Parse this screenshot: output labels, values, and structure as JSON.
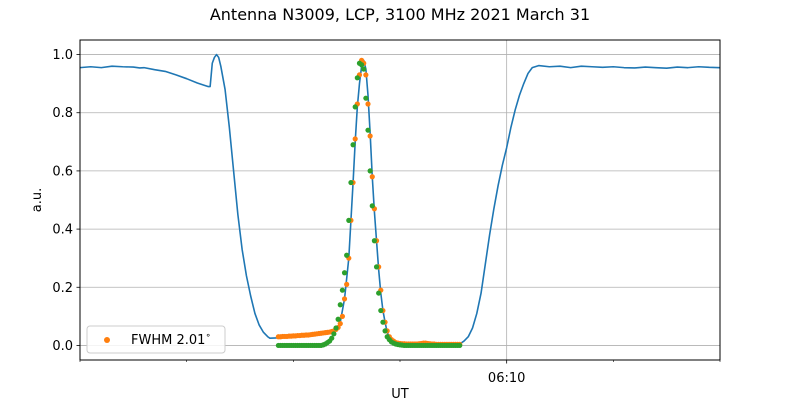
{
  "chart_data": {
    "type": "line",
    "title": "Antenna N3009, LCP, 3100 MHz 2021 March 31",
    "xlabel": "UT",
    "ylabel": "a.u.",
    "xlim": [
      0,
      300
    ],
    "ylim": [
      -0.05,
      1.05
    ],
    "y_ticks": [
      0.0,
      0.2,
      0.4,
      0.6,
      0.8,
      1.0
    ],
    "x_major_ticks": [
      {
        "x": 200,
        "label": "06:10"
      }
    ],
    "x_minor_ticks": [
      0,
      50,
      100,
      150,
      250,
      300
    ],
    "grid": true,
    "legend": {
      "position": "lower-left",
      "entries": [
        {
          "label": "FWHM 2.01$^\\circ$",
          "display": "FWHM 2.01",
          "superscript": "∘",
          "series": "orange"
        }
      ]
    },
    "colors": {
      "blue": "#1f77b4",
      "orange": "#ff7f0e",
      "green": "#2ca02c"
    },
    "series": [
      {
        "key": "blue",
        "kind": "line",
        "points": [
          [
            0,
            0.955
          ],
          [
            5,
            0.958
          ],
          [
            10,
            0.955
          ],
          [
            15,
            0.96
          ],
          [
            20,
            0.958
          ],
          [
            25,
            0.957
          ],
          [
            28,
            0.954
          ],
          [
            30,
            0.955
          ],
          [
            35,
            0.948
          ],
          [
            40,
            0.942
          ],
          [
            45,
            0.93
          ],
          [
            50,
            0.917
          ],
          [
            55,
            0.902
          ],
          [
            58,
            0.895
          ],
          [
            60,
            0.89
          ],
          [
            61,
            0.89
          ],
          [
            62,
            0.97
          ],
          [
            63,
            0.99
          ],
          [
            64,
            1.0
          ],
          [
            65,
            0.99
          ],
          [
            66,
            0.96
          ],
          [
            68,
            0.88
          ],
          [
            70,
            0.75
          ],
          [
            72,
            0.6
          ],
          [
            74,
            0.45
          ],
          [
            76,
            0.33
          ],
          [
            78,
            0.24
          ],
          [
            80,
            0.17
          ],
          [
            82,
            0.11
          ],
          [
            84,
            0.07
          ],
          [
            86,
            0.045
          ],
          [
            88,
            0.03
          ],
          [
            89,
            0.025
          ],
          [
            92,
            0.026
          ],
          [
            95,
            0.027
          ],
          [
            100,
            0.028
          ],
          [
            105,
            0.031
          ],
          [
            110,
            0.035
          ],
          [
            115,
            0.04
          ],
          [
            118,
            0.045
          ],
          [
            120,
            0.05
          ],
          [
            122,
            0.08
          ],
          [
            124,
            0.16
          ],
          [
            126,
            0.3
          ],
          [
            127,
            0.43
          ],
          [
            128,
            0.56
          ],
          [
            129,
            0.7
          ],
          [
            130,
            0.82
          ],
          [
            131,
            0.9
          ],
          [
            132,
            0.96
          ],
          [
            133,
            0.98
          ],
          [
            134,
            0.95
          ],
          [
            135,
            0.86
          ],
          [
            136,
            0.73
          ],
          [
            137,
            0.58
          ],
          [
            138,
            0.46
          ],
          [
            139,
            0.36
          ],
          [
            140,
            0.26
          ],
          [
            141,
            0.18
          ],
          [
            142,
            0.12
          ],
          [
            143,
            0.08
          ],
          [
            144,
            0.045
          ],
          [
            145,
            0.03
          ],
          [
            146,
            0.02
          ],
          [
            148,
            0.012
          ],
          [
            150,
            0.008
          ],
          [
            155,
            0.005
          ],
          [
            160,
            0.005
          ],
          [
            165,
            0.005
          ],
          [
            170,
            0.008
          ],
          [
            175,
            0.008
          ],
          [
            178,
            0.005
          ],
          [
            180,
            0.015
          ],
          [
            182,
            0.03
          ],
          [
            184,
            0.06
          ],
          [
            186,
            0.11
          ],
          [
            188,
            0.18
          ],
          [
            190,
            0.28
          ],
          [
            192,
            0.38
          ],
          [
            194,
            0.47
          ],
          [
            196,
            0.55
          ],
          [
            198,
            0.62
          ],
          [
            200,
            0.68
          ],
          [
            202,
            0.75
          ],
          [
            204,
            0.81
          ],
          [
            206,
            0.86
          ],
          [
            208,
            0.9
          ],
          [
            210,
            0.935
          ],
          [
            212,
            0.955
          ],
          [
            215,
            0.962
          ],
          [
            220,
            0.958
          ],
          [
            225,
            0.96
          ],
          [
            230,
            0.955
          ],
          [
            235,
            0.96
          ],
          [
            240,
            0.958
          ],
          [
            245,
            0.956
          ],
          [
            250,
            0.958
          ],
          [
            255,
            0.955
          ],
          [
            260,
            0.954
          ],
          [
            265,
            0.957
          ],
          [
            270,
            0.955
          ],
          [
            275,
            0.953
          ],
          [
            280,
            0.957
          ],
          [
            285,
            0.955
          ],
          [
            290,
            0.958
          ],
          [
            295,
            0.956
          ],
          [
            300,
            0.955
          ]
        ]
      },
      {
        "key": "orange",
        "kind": "scatter",
        "points": [
          [
            93,
            0.03
          ],
          [
            94,
            0.03
          ],
          [
            95,
            0.031
          ],
          [
            96,
            0.031
          ],
          [
            97,
            0.031
          ],
          [
            98,
            0.032
          ],
          [
            99,
            0.032
          ],
          [
            100,
            0.033
          ],
          [
            101,
            0.033
          ],
          [
            102,
            0.034
          ],
          [
            103,
            0.034
          ],
          [
            104,
            0.035
          ],
          [
            105,
            0.035
          ],
          [
            106,
            0.036
          ],
          [
            107,
            0.036
          ],
          [
            108,
            0.037
          ],
          [
            109,
            0.038
          ],
          [
            110,
            0.039
          ],
          [
            111,
            0.04
          ],
          [
            112,
            0.041
          ],
          [
            113,
            0.042
          ],
          [
            114,
            0.043
          ],
          [
            115,
            0.044
          ],
          [
            116,
            0.045
          ],
          [
            117,
            0.046
          ],
          [
            118,
            0.048
          ],
          [
            119,
            0.05
          ],
          [
            120,
            0.055
          ],
          [
            121,
            0.062
          ],
          [
            122,
            0.075
          ],
          [
            123,
            0.1
          ],
          [
            124,
            0.16
          ],
          [
            125,
            0.21
          ],
          [
            126,
            0.3
          ],
          [
            127,
            0.43
          ],
          [
            128,
            0.56
          ],
          [
            129,
            0.71
          ],
          [
            130,
            0.83
          ],
          [
            131,
            0.93
          ],
          [
            132,
            0.98
          ],
          [
            133,
            0.97
          ],
          [
            134,
            0.93
          ],
          [
            135,
            0.83
          ],
          [
            136,
            0.72
          ],
          [
            137,
            0.58
          ],
          [
            138,
            0.47
          ],
          [
            139,
            0.36
          ],
          [
            140,
            0.27
          ],
          [
            141,
            0.19
          ],
          [
            142,
            0.12
          ],
          [
            143,
            0.08
          ],
          [
            144,
            0.05
          ],
          [
            145,
            0.03
          ],
          [
            146,
            0.02
          ],
          [
            147,
            0.015
          ],
          [
            148,
            0.01
          ],
          [
            149,
            0.008
          ],
          [
            150,
            0.007
          ],
          [
            151,
            0.006
          ],
          [
            152,
            0.006
          ],
          [
            153,
            0.005
          ],
          [
            154,
            0.005
          ],
          [
            155,
            0.005
          ],
          [
            156,
            0.005
          ],
          [
            157,
            0.005
          ],
          [
            158,
            0.005
          ],
          [
            159,
            0.006
          ],
          [
            160,
            0.007
          ],
          [
            161,
            0.008
          ],
          [
            162,
            0.008
          ],
          [
            163,
            0.007
          ],
          [
            164,
            0.006
          ],
          [
            165,
            0.005
          ],
          [
            166,
            0.005
          ],
          [
            167,
            0.004
          ],
          [
            168,
            0.004
          ],
          [
            169,
            0.004
          ],
          [
            170,
            0.004
          ],
          [
            171,
            0.004
          ],
          [
            172,
            0.004
          ],
          [
            173,
            0.004
          ],
          [
            174,
            0.004
          ],
          [
            175,
            0.004
          ],
          [
            176,
            0.004
          ],
          [
            177,
            0.004
          ],
          [
            178,
            0.004
          ]
        ]
      },
      {
        "key": "green",
        "kind": "scatter",
        "points": [
          [
            93,
            0.0
          ],
          [
            94,
            0.0
          ],
          [
            95,
            0.0
          ],
          [
            96,
            0.0
          ],
          [
            97,
            0.0
          ],
          [
            98,
            0.0
          ],
          [
            99,
            0.0
          ],
          [
            100,
            0.0
          ],
          [
            101,
            0.0
          ],
          [
            102,
            0.0
          ],
          [
            103,
            0.0
          ],
          [
            104,
            0.0
          ],
          [
            105,
            0.0
          ],
          [
            106,
            0.0
          ],
          [
            107,
            0.0
          ],
          [
            108,
            0.0
          ],
          [
            109,
            0.0
          ],
          [
            110,
            0.0
          ],
          [
            111,
            0.0
          ],
          [
            112,
            0.0
          ],
          [
            113,
            0.0
          ],
          [
            114,
            0.002
          ],
          [
            115,
            0.005
          ],
          [
            116,
            0.01
          ],
          [
            117,
            0.015
          ],
          [
            118,
            0.025
          ],
          [
            119,
            0.04
          ],
          [
            120,
            0.06
          ],
          [
            121,
            0.09
          ],
          [
            122,
            0.14
          ],
          [
            123,
            0.19
          ],
          [
            124,
            0.25
          ],
          [
            125,
            0.31
          ],
          [
            126,
            0.43
          ],
          [
            127,
            0.56
          ],
          [
            128,
            0.69
          ],
          [
            129,
            0.82
          ],
          [
            130,
            0.92
          ],
          [
            131,
            0.97
          ],
          [
            132,
            0.965
          ],
          [
            133,
            0.95
          ],
          [
            134,
            0.85
          ],
          [
            135,
            0.74
          ],
          [
            136,
            0.6
          ],
          [
            137,
            0.48
          ],
          [
            138,
            0.36
          ],
          [
            139,
            0.27
          ],
          [
            140,
            0.18
          ],
          [
            141,
            0.12
          ],
          [
            142,
            0.08
          ],
          [
            143,
            0.05
          ],
          [
            144,
            0.03
          ],
          [
            145,
            0.02
          ],
          [
            146,
            0.012
          ],
          [
            147,
            0.008
          ],
          [
            148,
            0.005
          ],
          [
            149,
            0.003
          ],
          [
            150,
            0.002
          ],
          [
            151,
            0.001
          ],
          [
            152,
            0.0
          ],
          [
            153,
            0.0
          ],
          [
            154,
            0.0
          ],
          [
            155,
            0.0
          ],
          [
            156,
            0.0
          ],
          [
            157,
            0.0
          ],
          [
            158,
            0.0
          ],
          [
            159,
            0.0
          ],
          [
            160,
            0.0
          ],
          [
            161,
            0.0
          ],
          [
            162,
            0.0
          ],
          [
            163,
            0.0
          ],
          [
            164,
            0.0
          ],
          [
            165,
            0.0
          ],
          [
            166,
            0.0
          ],
          [
            167,
            0.0
          ],
          [
            168,
            0.0
          ],
          [
            169,
            0.0
          ],
          [
            170,
            0.0
          ],
          [
            171,
            0.0
          ],
          [
            172,
            0.0
          ],
          [
            173,
            0.0
          ],
          [
            174,
            0.0
          ],
          [
            175,
            0.0
          ],
          [
            176,
            0.0
          ],
          [
            177,
            0.0
          ],
          [
            178,
            0.0
          ]
        ]
      }
    ]
  }
}
